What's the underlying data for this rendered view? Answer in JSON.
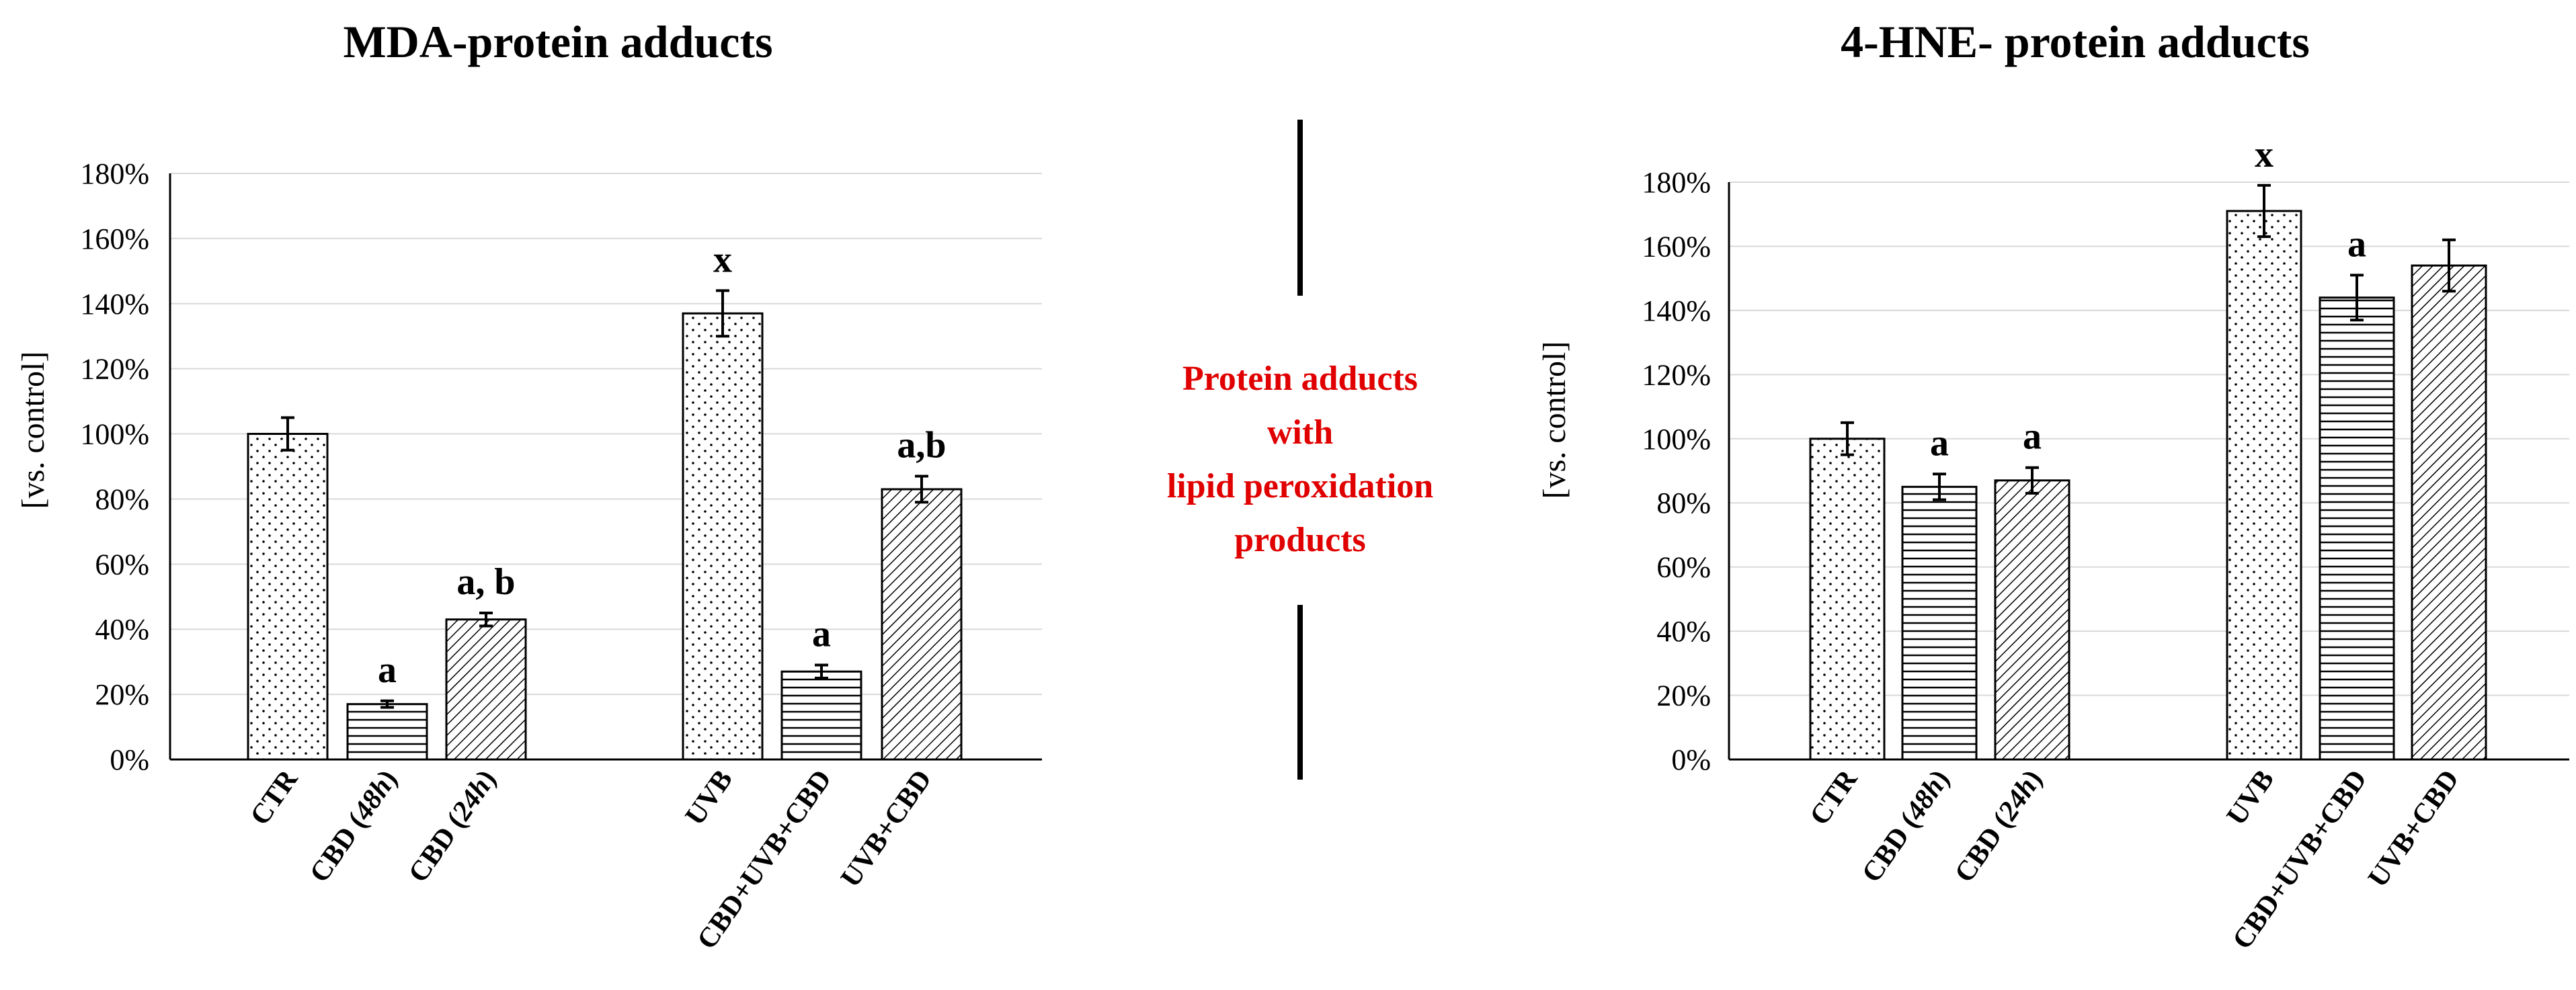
{
  "center": {
    "lines": [
      "Protein adducts",
      "with",
      "lipid peroxidation",
      "products"
    ],
    "color": "#e00000"
  },
  "chart_data": [
    {
      "type": "bar",
      "title": "MDA-protein adducts",
      "ylabel": "[vs. control]",
      "ylim": [
        0,
        180
      ],
      "yticks": [
        0,
        20,
        40,
        60,
        80,
        100,
        120,
        140,
        160,
        180
      ],
      "ytick_labels": [
        "0%",
        "20%",
        "40%",
        "60%",
        "80%",
        "100%",
        "120%",
        "140%",
        "160%",
        "180%"
      ],
      "grid": true,
      "categories": [
        "CTR",
        "CBD (48h)",
        "CBD (24h)",
        "UVB",
        "CBD+UVB+CBD",
        "UVB+CBD"
      ],
      "category_parts": [
        {
          "main": "CTR",
          "italic": ""
        },
        {
          "main": "CBD (",
          "italic": "48h",
          "end": ")"
        },
        {
          "main": "CBD (",
          "italic": "24h",
          "end": ")"
        },
        {
          "main": "UVB",
          "italic": ""
        },
        {
          "main": "CBD+UVB+CBD",
          "italic": ""
        },
        {
          "main": "UVB+CBD",
          "italic": ""
        }
      ],
      "values": [
        100,
        17,
        43,
        137,
        27,
        83
      ],
      "errors": [
        5,
        1,
        2,
        7,
        2,
        4
      ],
      "patterns": [
        "dots",
        "hlines",
        "diag",
        "dots",
        "hlines",
        "diag"
      ],
      "annotations": [
        "",
        "a",
        "a, b",
        "x",
        "a",
        "a,b"
      ]
    },
    {
      "type": "bar",
      "title": "4-HNE- protein adducts",
      "ylabel": "[vs. control]",
      "ylim": [
        0,
        180
      ],
      "yticks": [
        0,
        20,
        40,
        60,
        80,
        100,
        120,
        140,
        160,
        180
      ],
      "ytick_labels": [
        "0%",
        "20%",
        "40%",
        "60%",
        "80%",
        "100%",
        "120%",
        "140%",
        "160%",
        "180%"
      ],
      "grid": true,
      "categories": [
        "CTR",
        "CBD (48h)",
        "CBD (24h)",
        "UVB",
        "CBD+UVB+CBD",
        "UVB+CBD"
      ],
      "category_parts": [
        {
          "main": "CTR",
          "italic": ""
        },
        {
          "main": "CBD (",
          "italic": "48h",
          "end": ")"
        },
        {
          "main": "CBD (",
          "italic": "24h",
          "end": ")"
        },
        {
          "main": "UVB",
          "italic": ""
        },
        {
          "main": "CBD+UVB+CBD",
          "italic": ""
        },
        {
          "main": "UVB+CBD",
          "italic": ""
        }
      ],
      "values": [
        100,
        85,
        87,
        171,
        144,
        154
      ],
      "errors": [
        5,
        4,
        4,
        8,
        7,
        8
      ],
      "patterns": [
        "dots",
        "hlines",
        "diag",
        "dots",
        "hlines",
        "diag"
      ],
      "annotations": [
        "",
        "a",
        "a",
        "x",
        "a",
        ""
      ]
    }
  ]
}
